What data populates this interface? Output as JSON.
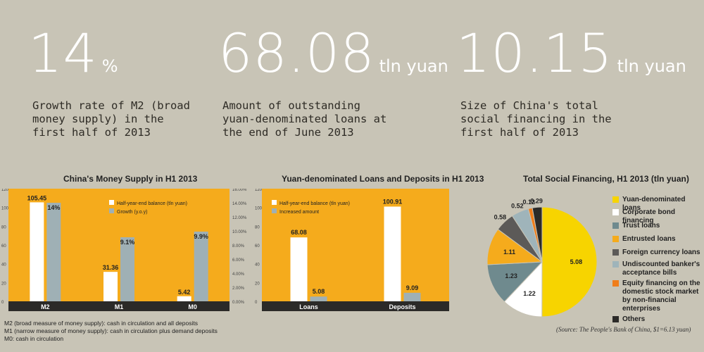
{
  "stats": [
    {
      "value": "14",
      "unit": "%",
      "desc": "Growth rate of M2 (broad money supply) in the first half of 2013"
    },
    {
      "value": "68.08",
      "unit": "tln yuan",
      "desc": "Amount of outstanding yuan-denominated loans at the end of June 2013"
    },
    {
      "value": "10.15",
      "unit": "tln yuan",
      "desc": "Size of China's total social financing in the first half of 2013"
    }
  ],
  "chart1_notes": [
    "M2 (broad measure of money supply): cash in circulation and all deposits",
    "M1 (narrow measure of money supply): cash in circulation plus demand deposits",
    "M0: cash in circulation"
  ],
  "source": "(Source: The People's Bank of China, $1=6.13 yuan)",
  "colors": {
    "background": "#c8c4b6",
    "orange": "#f5ab1c",
    "grey_bar": "#9fb0b5",
    "white": "#ffffff"
  },
  "chart_data": [
    {
      "type": "bar",
      "title": "China's Money Supply in H1 2013",
      "categories": [
        "M2",
        "M1",
        "M0"
      ],
      "series": [
        {
          "name": "Half-year-end balance (tln yuan)",
          "values": [
            105.45,
            31.36,
            5.42
          ],
          "labels": [
            "105.45",
            "31.36",
            "5.42"
          ]
        },
        {
          "name": "Growth (y.o.y)",
          "values": [
            14,
            9.1,
            9.9
          ],
          "labels": [
            "14%",
            "9.1%",
            "9.9%"
          ]
        }
      ],
      "ylim": [
        0,
        120
      ],
      "yticks": [
        "0",
        "20",
        "40",
        "60",
        "80",
        "100",
        "120"
      ],
      "ylim_right": [
        0,
        16
      ],
      "yticks_right": [
        "0.00%",
        "2.00%",
        "4.00%",
        "6.00%",
        "8.00%",
        "10.00%",
        "12.00%",
        "14.00%",
        "16.00%"
      ]
    },
    {
      "type": "bar",
      "title": "Yuan-denominated Loans and Deposits in H1 2013",
      "categories": [
        "Loans",
        "Deposits"
      ],
      "series": [
        {
          "name": "Half-year-end balance (tln yuan)",
          "values": [
            68.08,
            100.91
          ],
          "labels": [
            "68.08",
            "100.91"
          ]
        },
        {
          "name": "Increased amount",
          "values": [
            5.08,
            9.09
          ],
          "labels": [
            "5.08",
            "9.09"
          ]
        }
      ],
      "ylim": [
        0,
        120
      ],
      "yticks": [
        "0",
        "20",
        "40",
        "60",
        "80",
        "100",
        "120"
      ]
    },
    {
      "type": "pie",
      "title": "Total Social Financing, H1 2013 (tln yuan)",
      "slices": [
        {
          "name": "Yuan-denominated loans",
          "value": 5.08,
          "label": "5.08",
          "color": "#f7d400"
        },
        {
          "name": "Corporate bond financing",
          "value": 1.22,
          "label": "1.22",
          "color": "#ffffff"
        },
        {
          "name": "Trust loans",
          "value": 1.23,
          "label": "1.23",
          "color": "#6f8a8e"
        },
        {
          "name": "Entrusted loans",
          "value": 1.11,
          "label": "1.11",
          "color": "#f5ab1c"
        },
        {
          "name": "Foreign currency loans",
          "value": 0.58,
          "label": "0.58",
          "color": "#5c5a58"
        },
        {
          "name": "Undiscounted banker's acceptance bills",
          "value": 0.52,
          "label": "0.52",
          "color": "#9fb4ba"
        },
        {
          "name": "Equity financing on the domestic stock market by non-financial enterprises",
          "value": 0.12,
          "label": "0.12",
          "color": "#ef7d1a"
        },
        {
          "name": "Others",
          "value": 0.29,
          "label": "0.29",
          "color": "#2b2a28"
        }
      ]
    }
  ]
}
